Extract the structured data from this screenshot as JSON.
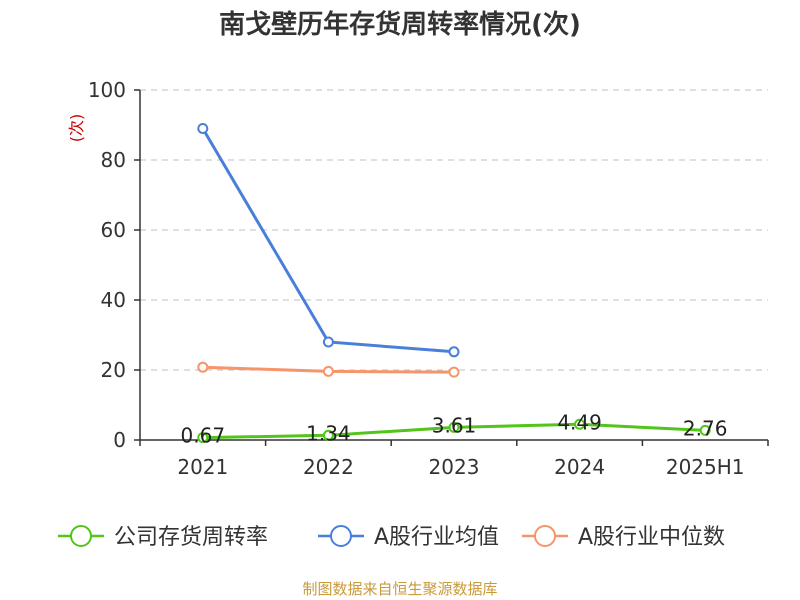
{
  "title": "南戈壁历年存货周转率情况(次)",
  "source": "制图数据来自恒生聚源数据库",
  "chart_data": {
    "type": "line",
    "title": "南戈壁历年存货周转率情况(次)",
    "ylabel": "(次)",
    "categories": [
      "2021",
      "2022",
      "2023",
      "2024",
      "2025H1"
    ],
    "ylim": [
      0,
      100
    ],
    "yticks": [
      0,
      20,
      40,
      60,
      80,
      100
    ],
    "grid": true,
    "legend_position": "bottom",
    "series": [
      {
        "name": "公司存货周转率",
        "color": "#52c41a",
        "values": [
          0.67,
          1.34,
          3.61,
          4.49,
          2.76
        ],
        "labels": [
          "0.67",
          "1.34",
          "3.61",
          "4.49",
          "2.76"
        ]
      },
      {
        "name": "A股行业均值",
        "color": "#4a7fd9",
        "values": [
          89.0,
          28.0,
          25.2,
          null,
          null
        ]
      },
      {
        "name": "A股行业中位数",
        "color": "#f5956a",
        "values": [
          20.8,
          19.6,
          19.4,
          null,
          null
        ]
      }
    ]
  }
}
